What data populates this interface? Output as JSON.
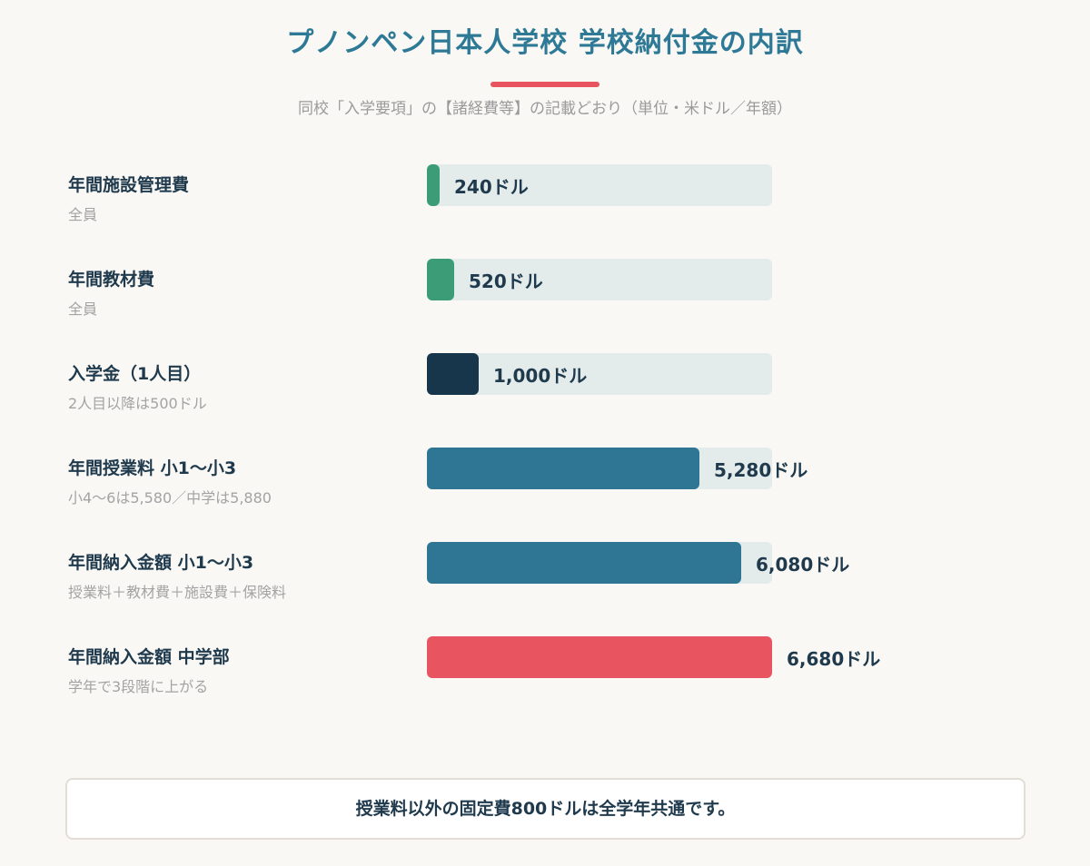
{
  "title": "プノンペン日本人学校 学校納付金の内訳",
  "subtitle": "同校「入学要項」の【諸経費等】の記載どおり（単位・米ドル／年額）",
  "colors": {
    "accent": "#e85460",
    "title": "#2e7a96",
    "track": "#e4ebeb"
  },
  "chart_data": {
    "type": "bar",
    "orientation": "horizontal",
    "unit": "ドル",
    "xlim": [
      0,
      6680
    ],
    "categories": [
      "年間施設管理費",
      "年間教材費",
      "入学金（1人目）",
      "年間授業料 小1〜小3",
      "年間納入金額 小1〜小3",
      "年間納入金額 中学部"
    ],
    "values": [
      240,
      520,
      1000,
      5280,
      6080,
      6680
    ],
    "bars": [
      {
        "label": "年間施設管理費",
        "sub": "全員",
        "value": 240,
        "value_label": "240ドル",
        "color": "#3d9c78"
      },
      {
        "label": "年間教材費",
        "sub": "全員",
        "value": 520,
        "value_label": "520ドル",
        "color": "#3d9c78"
      },
      {
        "label": "入学金（1人目）",
        "sub": "2人目以降は500ドル",
        "value": 1000,
        "value_label": "1,000ドル",
        "color": "#17364b"
      },
      {
        "label": "年間授業料 小1〜小3",
        "sub": "小4〜6は5,580／中学は5,880",
        "value": 5280,
        "value_label": "5,280ドル",
        "color": "#2e7693"
      },
      {
        "label": "年間納入金額 小1〜小3",
        "sub": "授業料＋教材費＋施設費＋保険料",
        "value": 6080,
        "value_label": "6,080ドル",
        "color": "#2e7693"
      },
      {
        "label": "年間納入金額 中学部",
        "sub": "学年で3段階に上がる",
        "value": 6680,
        "value_label": "6,680ドル",
        "color": "#e85460"
      }
    ]
  },
  "note": "授業料以外の固定費800ドルは全学年共通です。"
}
